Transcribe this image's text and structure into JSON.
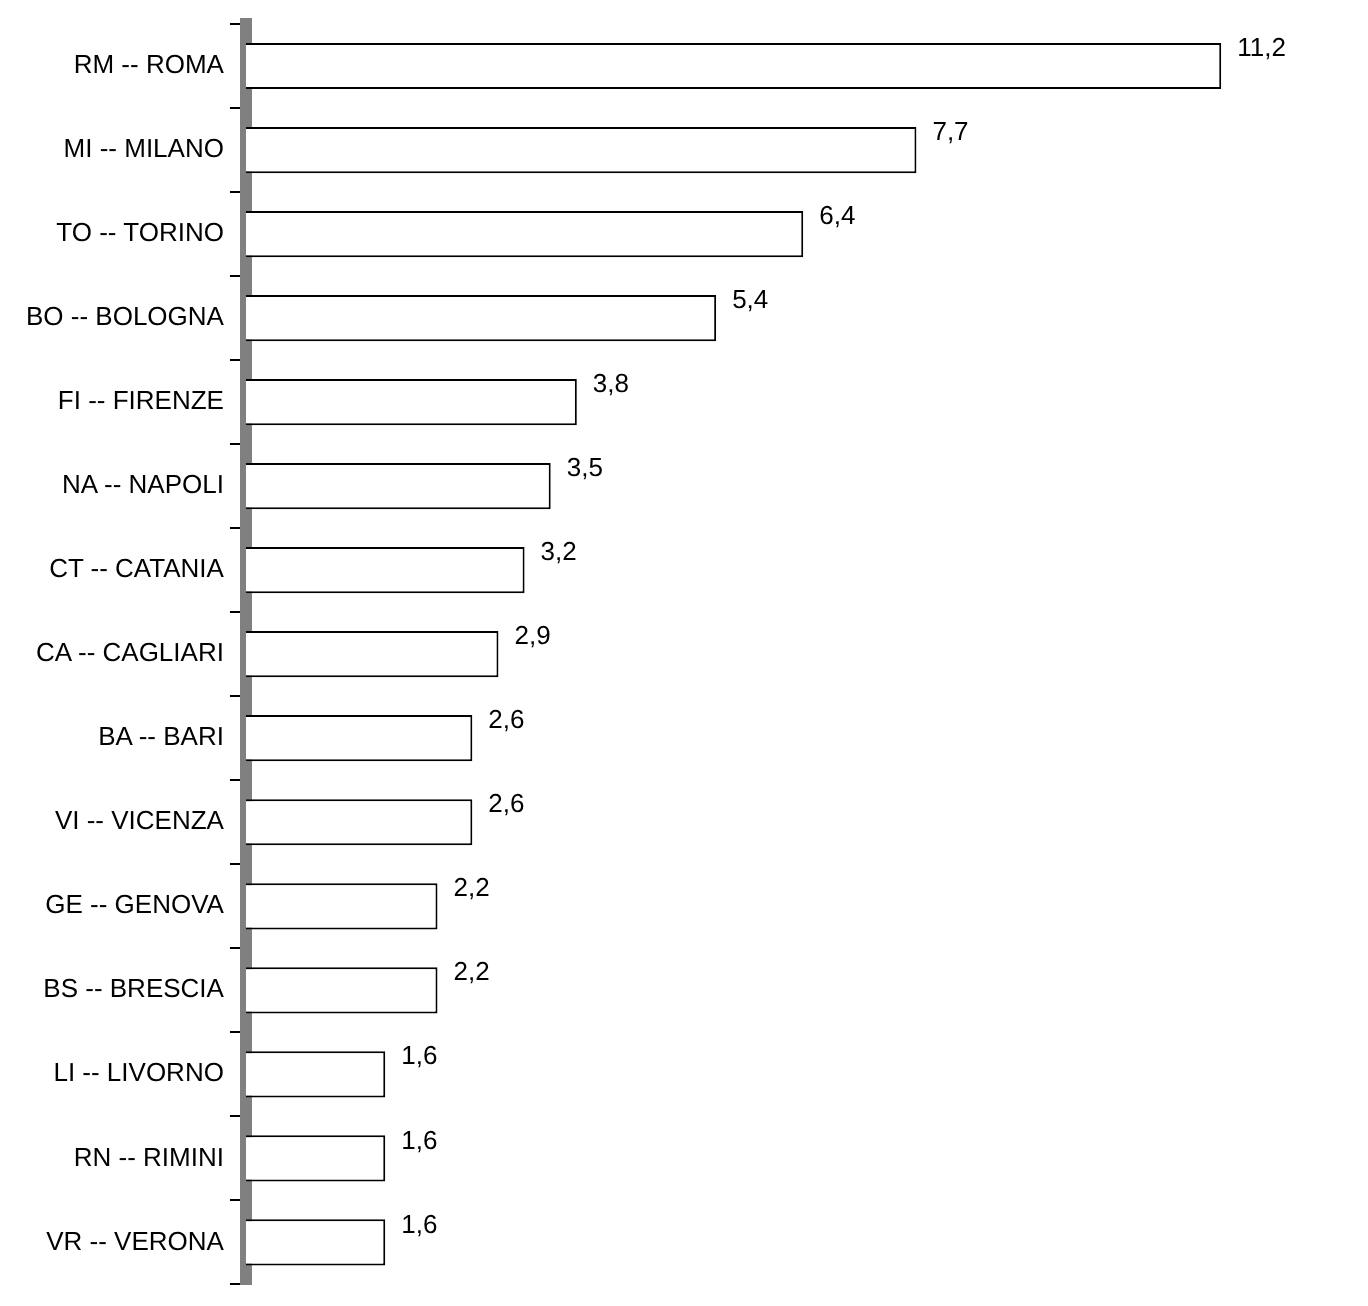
{
  "chart_data": {
    "type": "bar",
    "orientation": "horizontal",
    "categories": [
      "RM -- ROMA",
      "MI -- MILANO",
      "TO -- TORINO",
      "BO -- BOLOGNA",
      "FI -- FIRENZE",
      "NA -- NAPOLI",
      "CT -- CATANIA",
      "CA -- CAGLIARI",
      "BA -- BARI",
      "VI -- VICENZA",
      "GE -- GENOVA",
      "BS -- BRESCIA",
      "LI -- LIVORNO",
      "RN -- RIMINI",
      "VR -- VERONA"
    ],
    "values": [
      11.2,
      7.7,
      6.4,
      5.4,
      3.8,
      3.5,
      3.2,
      2.9,
      2.6,
      2.6,
      2.2,
      2.2,
      1.6,
      1.6,
      1.6
    ],
    "value_labels": [
      "11,2",
      "7,7",
      "6,4",
      "5,4",
      "3,8",
      "3,5",
      "3,2",
      "2,9",
      "2,6",
      "2,6",
      "2,2",
      "2,2",
      "1,6",
      "1,6",
      "1,6"
    ],
    "color": "#ffffff",
    "grid": false,
    "legend": false
  }
}
